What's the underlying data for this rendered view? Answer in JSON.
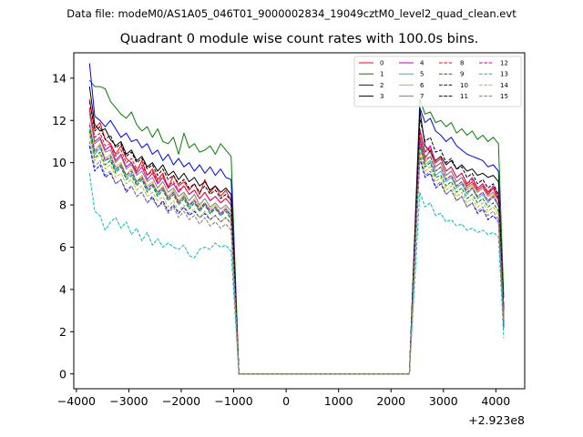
{
  "figure": {
    "suptitle": "Data file: modeM0/AS1A05_046T01_9000002834_19049cztM0_level2_quad_clean.evt",
    "title": "Quadrant 0 module wise count rates with 100.0s bins."
  },
  "chart_data": {
    "type": "line",
    "title": "Quadrant 0 module wise count rates with 100.0s bins.",
    "xlabel": "",
    "ylabel": "",
    "x_offset_label": "+2.923e8",
    "xlim": [
      -4050,
      4550
    ],
    "ylim": [
      -0.7,
      15.2
    ],
    "xticks": [
      -4000,
      -3000,
      -2000,
      -1000,
      0,
      1000,
      2000,
      3000,
      4000
    ],
    "xtick_labels": [
      "−4000",
      "−3000",
      "−2000",
      "−1000",
      "0",
      "1000",
      "2000",
      "3000",
      "4000"
    ],
    "yticks": [
      0,
      2,
      4,
      6,
      8,
      10,
      12,
      14
    ],
    "ytick_labels": [
      "0",
      "2",
      "4",
      "6",
      "8",
      "10",
      "12",
      "14"
    ],
    "grid": false,
    "legend_position": "top-right",
    "legend_columns": 4,
    "segments": [
      {
        "x_start": -3750,
        "x_end": -1000,
        "step": 100
      },
      {
        "x_start": 2550,
        "x_end": 4150,
        "step": 100
      }
    ],
    "gap": {
      "x": [
        -900,
        2350
      ],
      "value": 0
    },
    "series": [
      {
        "name": "0",
        "color": "#ff0000",
        "dash": "solid",
        "seg1": [
          13.0,
          11.6,
          11.9,
          11.1,
          10.9,
          10.4,
          10.8,
          10.2,
          10.0,
          9.6,
          10.1,
          9.4,
          9.7,
          9.2,
          9.5,
          8.8,
          9.4,
          8.9,
          9.1,
          8.7,
          9.0,
          8.5,
          9.2,
          8.6,
          8.9,
          8.4,
          8.7,
          8.2
        ],
        "seg2": [
          11.2,
          10.2,
          10.6,
          9.8,
          10.0,
          9.4,
          9.6,
          9.1,
          9.3,
          8.9,
          9.1,
          8.7,
          8.9,
          8.5,
          8.8,
          8.2,
          3.0
        ]
      },
      {
        "name": "1",
        "color": "#008000",
        "dash": "solid",
        "seg1": [
          13.9,
          13.6,
          13.6,
          13.5,
          12.9,
          12.6,
          12.3,
          12.1,
          12.4,
          11.8,
          11.5,
          11.7,
          11.2,
          11.6,
          11.0,
          10.9,
          11.2,
          10.4,
          11.4,
          10.7,
          10.9,
          10.5,
          10.6,
          10.8,
          10.4,
          10.9,
          10.6,
          10.3
        ],
        "seg2": [
          13.0,
          12.3,
          12.4,
          11.9,
          12.0,
          11.7,
          11.9,
          11.4,
          11.6,
          11.3,
          11.5,
          11.1,
          11.3,
          11.0,
          11.2,
          10.9,
          3.6
        ]
      },
      {
        "name": "2",
        "color": "#0000ff",
        "dash": "solid",
        "seg1": [
          14.7,
          12.2,
          12.0,
          11.7,
          12.0,
          11.6,
          11.2,
          11.4,
          11.0,
          11.1,
          10.7,
          10.9,
          10.4,
          10.6,
          10.1,
          10.4,
          9.9,
          10.2,
          9.8,
          10.0,
          9.6,
          9.9,
          9.5,
          9.8,
          9.4,
          9.7,
          9.3,
          9.2
        ],
        "seg2": [
          12.6,
          11.9,
          12.1,
          11.5,
          11.3,
          11.0,
          11.2,
          10.8,
          10.6,
          10.4,
          10.3,
          10.2,
          10.1,
          9.8,
          9.9,
          9.6,
          2.2
        ]
      },
      {
        "name": "3",
        "color": "#000000",
        "dash": "solid",
        "seg1": [
          13.6,
          11.8,
          11.5,
          11.6,
          11.1,
          10.8,
          11.0,
          10.4,
          10.6,
          10.1,
          10.3,
          9.8,
          10.0,
          9.6,
          9.9,
          9.4,
          9.6,
          9.2,
          9.5,
          9.1,
          9.3,
          8.9,
          9.1,
          8.7,
          8.9,
          8.6,
          8.8,
          8.5
        ],
        "seg2": [
          12.5,
          10.8,
          10.5,
          10.1,
          10.3,
          9.9,
          10.1,
          9.7,
          9.9,
          9.6,
          9.7,
          9.4,
          9.5,
          9.3,
          9.4,
          9.1,
          3.0
        ]
      },
      {
        "name": "4",
        "color": "#bf00bf",
        "dash": "solid",
        "seg1": [
          12.5,
          11.0,
          11.2,
          10.6,
          10.8,
          10.1,
          10.4,
          9.8,
          10.0,
          9.5,
          9.8,
          9.2,
          9.5,
          9.0,
          9.3,
          8.8,
          9.0,
          8.6,
          8.9,
          8.5,
          8.7,
          8.3,
          8.6,
          8.2,
          8.4,
          8.1,
          8.3,
          8.0
        ],
        "seg2": [
          11.6,
          10.5,
          10.8,
          10.0,
          10.2,
          9.6,
          9.8,
          9.3,
          9.5,
          9.0,
          9.3,
          8.8,
          9.0,
          8.6,
          8.9,
          8.4,
          2.8
        ]
      },
      {
        "name": "5",
        "color": "#17becf",
        "dash": "solid",
        "seg1": [
          11.6,
          10.4,
          10.7,
          10.1,
          10.2,
          9.6,
          9.9,
          9.3,
          9.5,
          9.0,
          9.3,
          8.7,
          9.0,
          8.5,
          8.8,
          8.3,
          8.6,
          8.1,
          8.4,
          7.9,
          8.2,
          7.7,
          8.1,
          7.6,
          7.9,
          7.5,
          7.8,
          7.4
        ],
        "seg2": [
          10.8,
          9.9,
          10.1,
          9.4,
          9.6,
          9.1,
          9.3,
          8.8,
          9.0,
          8.5,
          8.8,
          8.3,
          8.5,
          8.1,
          8.4,
          7.9,
          2.6
        ]
      },
      {
        "name": "6",
        "color": "#bcbd22",
        "dash": "solid",
        "seg1": [
          11.9,
          10.6,
          10.9,
          10.2,
          10.4,
          9.8,
          10.0,
          9.4,
          9.7,
          9.1,
          9.4,
          8.9,
          9.1,
          8.6,
          8.9,
          8.4,
          8.7,
          8.2,
          8.5,
          8.0,
          8.3,
          7.9,
          8.1,
          7.8,
          8.0,
          7.6,
          7.9,
          7.5
        ],
        "seg2": [
          11.0,
          10.0,
          10.3,
          9.6,
          9.8,
          9.2,
          9.4,
          8.9,
          9.1,
          8.7,
          8.9,
          8.4,
          8.6,
          8.2,
          8.5,
          8.0,
          2.7
        ]
      },
      {
        "name": "7",
        "color": "#7f7f7f",
        "dash": "solid",
        "seg1": [
          12.3,
          10.9,
          11.1,
          10.5,
          10.6,
          10.0,
          10.3,
          9.7,
          9.9,
          9.4,
          9.6,
          9.1,
          9.3,
          8.8,
          9.1,
          8.6,
          8.8,
          8.4,
          8.6,
          8.2,
          8.5,
          8.0,
          8.3,
          7.9,
          8.1,
          7.8,
          8.0,
          7.7
        ],
        "seg2": [
          11.3,
          10.3,
          10.5,
          9.8,
          10.0,
          9.4,
          9.6,
          9.1,
          9.3,
          8.8,
          9.0,
          8.6,
          8.8,
          8.4,
          8.6,
          8.2,
          2.8
        ]
      },
      {
        "name": "8",
        "color": "#ff0000",
        "dash": "dashed",
        "seg1": [
          12.6,
          11.2,
          11.4,
          10.8,
          10.9,
          10.3,
          10.6,
          10.0,
          10.2,
          9.7,
          9.9,
          9.4,
          9.6,
          9.1,
          9.4,
          8.9,
          9.1,
          8.7,
          8.9,
          8.5,
          8.7,
          8.3,
          8.6,
          8.2,
          8.4,
          8.1,
          8.3,
          8.0
        ],
        "seg2": [
          11.5,
          10.5,
          10.7,
          10.0,
          10.2,
          9.6,
          9.8,
          9.3,
          9.5,
          9.0,
          9.2,
          8.8,
          9.0,
          8.6,
          8.8,
          8.3,
          2.9
        ]
      },
      {
        "name": "9",
        "color": "#008000",
        "dash": "dashed",
        "seg1": [
          11.5,
          10.2,
          10.5,
          9.9,
          10.1,
          9.5,
          9.8,
          9.2,
          9.4,
          8.9,
          9.2,
          8.6,
          8.9,
          8.4,
          8.7,
          8.2,
          8.5,
          8.0,
          8.3,
          7.8,
          8.1,
          7.7,
          8.0,
          7.6,
          7.8,
          7.5,
          7.7,
          7.3
        ],
        "seg2": [
          10.9,
          9.8,
          10.0,
          9.3,
          9.4,
          8.9,
          9.1,
          8.6,
          8.8,
          8.3,
          8.5,
          8.1,
          8.3,
          7.9,
          8.1,
          7.7,
          2.5
        ]
      },
      {
        "name": "10",
        "color": "#0000ff",
        "dash": "dashed",
        "seg1": [
          10.8,
          9.6,
          9.9,
          9.3,
          9.5,
          9.0,
          9.2,
          8.6,
          8.9,
          8.4,
          8.6,
          8.1,
          8.4,
          7.9,
          8.2,
          7.7,
          8.0,
          7.6,
          7.9,
          7.5,
          7.7,
          7.4,
          7.6,
          7.3,
          7.5,
          7.2,
          7.4,
          7.1
        ],
        "seg2": [
          10.2,
          9.3,
          9.5,
          8.8,
          9.0,
          8.5,
          8.7,
          8.2,
          8.4,
          7.9,
          8.1,
          7.6,
          7.8,
          7.3,
          7.5,
          7.2,
          2.4
        ]
      },
      {
        "name": "11",
        "color": "#000000",
        "dash": "dashed",
        "seg1": [
          12.9,
          11.5,
          11.7,
          11.1,
          11.3,
          10.7,
          10.9,
          10.3,
          10.5,
          10.0,
          10.2,
          9.7,
          9.9,
          9.4,
          9.7,
          9.2,
          9.4,
          9.0,
          9.2,
          8.8,
          9.0,
          8.6,
          8.9,
          8.5,
          8.7,
          8.3,
          8.5,
          8.2
        ],
        "seg2": [
          12.1,
          11.0,
          11.2,
          10.5,
          10.6,
          10.0,
          10.2,
          9.7,
          9.8,
          9.3,
          9.5,
          9.0,
          9.2,
          8.8,
          9.0,
          8.5,
          3.1
        ]
      },
      {
        "name": "12",
        "color": "#bf00bf",
        "dash": "dashed",
        "seg1": [
          11.8,
          10.5,
          10.8,
          10.1,
          10.3,
          9.7,
          9.9,
          9.4,
          9.6,
          9.1,
          9.3,
          8.8,
          9.0,
          8.6,
          8.8,
          8.3,
          8.6,
          8.1,
          8.4,
          8.0,
          8.2,
          7.8,
          8.1,
          7.7,
          7.9,
          7.6,
          7.8,
          7.5
        ],
        "seg2": [
          11.1,
          10.1,
          10.3,
          9.6,
          9.8,
          9.2,
          9.4,
          8.9,
          9.1,
          8.6,
          8.8,
          8.4,
          8.6,
          8.2,
          8.4,
          8.0,
          2.7
        ]
      },
      {
        "name": "13",
        "color": "#00bfbf",
        "dash": "dashed",
        "seg1": [
          9.5,
          7.7,
          7.5,
          6.8,
          7.2,
          7.4,
          6.9,
          7.2,
          6.6,
          6.9,
          6.3,
          6.7,
          6.1,
          6.4,
          6.0,
          6.2,
          6.0,
          5.9,
          6.1,
          5.6,
          5.5,
          5.9,
          6.0,
          5.9,
          6.2,
          6.0,
          6.1,
          5.8
        ],
        "seg2": [
          8.6,
          7.9,
          8.1,
          7.5,
          7.6,
          7.2,
          7.3,
          7.0,
          7.1,
          6.8,
          6.9,
          6.7,
          6.8,
          6.6,
          6.7,
          6.5,
          1.7
        ]
      },
      {
        "name": "14",
        "color": "#bcbd22",
        "dash": "dashed",
        "seg1": [
          11.3,
          10.1,
          10.4,
          9.7,
          9.9,
          9.3,
          9.5,
          9.0,
          9.2,
          8.7,
          8.9,
          8.4,
          8.6,
          8.2,
          8.4,
          7.9,
          8.2,
          7.7,
          8.0,
          7.6,
          7.8,
          7.4,
          7.7,
          7.3,
          7.5,
          7.2,
          7.4,
          7.1
        ],
        "seg2": [
          10.6,
          9.6,
          9.8,
          9.1,
          9.3,
          8.7,
          8.9,
          8.4,
          8.6,
          8.1,
          8.3,
          7.9,
          8.1,
          7.7,
          7.9,
          7.5,
          2.5
        ]
      },
      {
        "name": "15",
        "color": "#7f7f7f",
        "dash": "dashed",
        "seg1": [
          11.0,
          9.8,
          10.1,
          9.4,
          9.6,
          9.0,
          9.2,
          8.7,
          8.9,
          8.4,
          8.6,
          8.1,
          8.3,
          7.9,
          8.1,
          7.6,
          7.9,
          7.4,
          7.7,
          7.3,
          7.5,
          7.1,
          7.4,
          7.0,
          7.2,
          6.9,
          7.1,
          6.8
        ],
        "seg2": [
          10.4,
          9.4,
          9.6,
          8.9,
          9.1,
          8.5,
          8.7,
          8.2,
          8.4,
          7.9,
          8.1,
          7.7,
          7.9,
          7.5,
          7.7,
          7.3,
          2.4
        ]
      }
    ]
  }
}
